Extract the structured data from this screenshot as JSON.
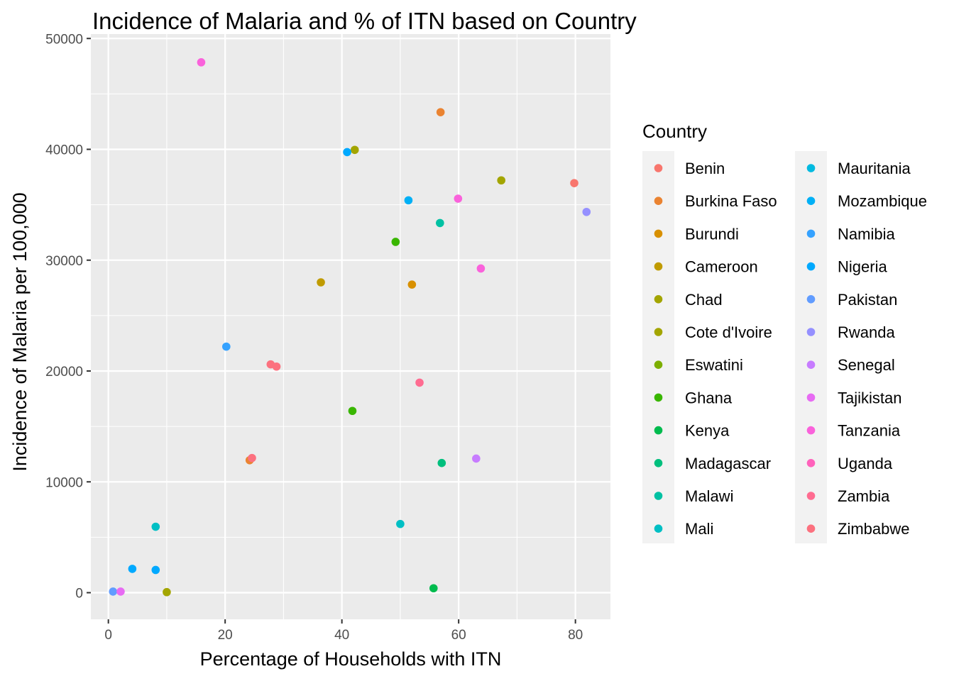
{
  "chart_data": {
    "type": "scatter",
    "title": "Incidence of Malaria and % of ITN based on Country",
    "xlabel": "Percentage of Households with ITN",
    "ylabel": "Incidence of Malaria per 100,000",
    "xlim": [
      -3,
      86
    ],
    "ylim": [
      -2400,
      50400
    ],
    "xticks": [
      0,
      20,
      40,
      60,
      80
    ],
    "yticks": [
      0,
      10000,
      20000,
      30000,
      40000,
      50000
    ],
    "xtick_labels": [
      "0",
      "20",
      "40",
      "60",
      "80"
    ],
    "ytick_labels": [
      "0",
      "10000",
      "20000",
      "30000",
      "40000",
      "50000"
    ],
    "grid": true,
    "legend_title": "Country",
    "legend_position": "right",
    "series": [
      {
        "name": "Benin",
        "color": "#F8766D",
        "points": [
          [
            79.8,
            36950
          ]
        ]
      },
      {
        "name": "Burkina Faso",
        "color": "#EA8331",
        "points": [
          [
            56.9,
            43350
          ],
          [
            24.2,
            11950
          ]
        ]
      },
      {
        "name": "Burundi",
        "color": "#D89000",
        "points": [
          [
            52.0,
            27800
          ]
        ]
      },
      {
        "name": "Cameroon",
        "color": "#C09B00",
        "points": [
          [
            36.4,
            28000
          ]
        ]
      },
      {
        "name": "Chad",
        "color": "#A3A500",
        "points": [
          [
            42.2,
            39950
          ]
        ]
      },
      {
        "name": "Cote d'Ivoire",
        "color": "#A3A500",
        "points": [
          [
            67.3,
            37200
          ],
          [
            10.0,
            50
          ]
        ]
      },
      {
        "name": "Eswatini",
        "color": "#7CAE00",
        "points": []
      },
      {
        "name": "Ghana",
        "color": "#39B600",
        "points": [
          [
            49.2,
            31650
          ],
          [
            41.8,
            16400
          ]
        ]
      },
      {
        "name": "Kenya",
        "color": "#00BB4E",
        "points": [
          [
            55.7,
            400
          ]
        ]
      },
      {
        "name": "Madagascar",
        "color": "#00BF7D",
        "points": [
          [
            57.1,
            11700
          ]
        ]
      },
      {
        "name": "Malawi",
        "color": "#00C1A3",
        "points": [
          [
            56.8,
            33350
          ]
        ]
      },
      {
        "name": "Mali",
        "color": "#00BFC4",
        "points": [
          [
            50.0,
            6200
          ],
          [
            8.1,
            5950
          ]
        ]
      },
      {
        "name": "Mauritania",
        "color": "#00BAE0",
        "points": []
      },
      {
        "name": "Mozambique",
        "color": "#00B0F6",
        "points": [
          [
            51.4,
            35400
          ]
        ]
      },
      {
        "name": "Namibia",
        "color": "#35A2FF",
        "points": [
          [
            20.2,
            22200
          ]
        ]
      },
      {
        "name": "Nigeria",
        "color": "#00A9FF",
        "points": [
          [
            40.9,
            39750
          ],
          [
            4.1,
            2150
          ],
          [
            8.1,
            2050
          ]
        ]
      },
      {
        "name": "Pakistan",
        "color": "#619CFF",
        "points": [
          [
            0.8,
            100
          ]
        ]
      },
      {
        "name": "Rwanda",
        "color": "#9590FF",
        "points": [
          [
            81.9,
            34350
          ]
        ]
      },
      {
        "name": "Senegal",
        "color": "#C77CFF",
        "points": [
          [
            63.0,
            12100
          ]
        ]
      },
      {
        "name": "Tajikistan",
        "color": "#E76BF3",
        "points": [
          [
            2.1,
            100
          ]
        ]
      },
      {
        "name": "Tanzania",
        "color": "#FA62DB",
        "points": [
          [
            59.9,
            35550
          ],
          [
            15.9,
            47850
          ],
          [
            63.8,
            29250
          ]
        ]
      },
      {
        "name": "Uganda",
        "color": "#FF62BC",
        "points": []
      },
      {
        "name": "Zambia",
        "color": "#FF6C91",
        "points": [
          [
            53.3,
            18950
          ]
        ]
      },
      {
        "name": "Zimbabwe",
        "color": "#FC717F",
        "points": [
          [
            27.8,
            20600
          ],
          [
            28.8,
            20400
          ],
          [
            24.6,
            12150
          ]
        ]
      }
    ]
  }
}
